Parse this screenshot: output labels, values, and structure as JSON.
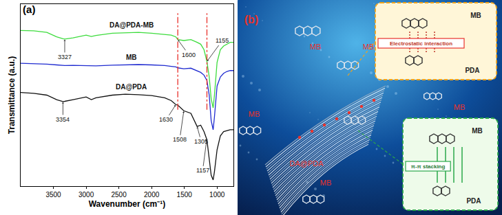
{
  "chart_data": {
    "type": "line",
    "title": "(a)",
    "x_label": "Wavenumber (cm⁻¹)",
    "y_label": "Transmittance (a.u.)",
    "x": [
      4000,
      3800,
      3600,
      3450,
      3354,
      3327,
      3200,
      3000,
      2920,
      2850,
      2600,
      2400,
      2200,
      2000,
      1800,
      1700,
      1630,
      1600,
      1508,
      1400,
      1305,
      1250,
      1200,
      1157,
      1155,
      1120,
      1090,
      1060,
      1040,
      1000,
      950,
      900,
      850,
      800,
      750
    ],
    "series": [
      {
        "name": "DA@PDA-MB",
        "color": "#3ddc3d",
        "values": [
          85.5,
          85.3,
          84.5,
          82,
          81,
          80.8,
          81.5,
          83,
          82.2,
          82.8,
          84,
          84.3,
          84.5,
          84,
          83.5,
          83,
          82,
          80.5,
          80,
          80.5,
          79,
          78,
          75,
          69,
          68.5,
          60,
          48,
          43,
          50,
          68,
          75,
          77,
          78,
          79,
          79
        ]
      },
      {
        "name": "MB",
        "color": "#1f2bd0",
        "values": [
          67.5,
          67.3,
          67,
          66.6,
          66.4,
          66.3,
          66.4,
          66.2,
          66,
          66.1,
          66.5,
          66.7,
          66.8,
          66.6,
          66.3,
          65.8,
          65.5,
          65,
          64.5,
          64.8,
          63.5,
          62.5,
          61,
          58.5,
          58,
          50,
          36,
          31,
          38,
          55,
          60,
          62,
          63,
          63.5,
          63.5
        ]
      },
      {
        "name": "DA@PDA",
        "color": "#111111",
        "values": [
          51.5,
          51,
          50,
          47.5,
          46.5,
          46.6,
          47.5,
          49,
          47.5,
          48.5,
          50,
          50.5,
          50.2,
          49.8,
          48.5,
          47,
          44.8,
          44.5,
          41.4,
          40,
          32.8,
          33.5,
          30,
          25.9,
          25.5,
          15,
          6,
          3.4,
          8,
          20,
          27.6,
          30,
          30.5,
          31,
          31
        ]
      }
    ],
    "xlim": [
      4000,
      750
    ],
    "xticks": [
      3500,
      3000,
      2500,
      2000,
      1500,
      1000
    ],
    "ylim": [
      0,
      100
    ],
    "tick_labels": "x",
    "grid": false,
    "annotations": [
      {
        "text": "3327",
        "x": 3327,
        "series": "DA@PDA-MB"
      },
      {
        "text": "1600",
        "x": 1600,
        "series": "DA@PDA-MB"
      },
      {
        "text": "1155",
        "x": 1155,
        "series": "DA@PDA-MB"
      },
      {
        "text": "3354",
        "x": 3354,
        "series": "DA@PDA"
      },
      {
        "text": "1630",
        "x": 1630,
        "series": "DA@PDA"
      },
      {
        "text": "1508",
        "x": 1508,
        "series": "DA@PDA"
      },
      {
        "text": "1305",
        "x": 1305,
        "series": "DA@PDA"
      },
      {
        "text": "1157",
        "x": 1157,
        "series": "DA@PDA"
      }
    ],
    "reference_lines": [
      {
        "x": 1600,
        "color": "#e8302a",
        "line_style": "dashdot"
      },
      {
        "x": 1155,
        "color": "#e8302a",
        "line_style": "dashdot"
      }
    ]
  },
  "panel_b": {
    "label": "(b)",
    "free_labels": [
      "MB",
      "MB",
      "MB",
      "MB",
      "MB"
    ],
    "substrate_label": "DA@PDA",
    "insets": [
      {
        "molecule": "MB",
        "surface": "PDA",
        "interaction": "Electrostatic interaction"
      },
      {
        "molecule": "MB",
        "surface": "PDA",
        "interaction": "π-π stacking"
      }
    ]
  }
}
